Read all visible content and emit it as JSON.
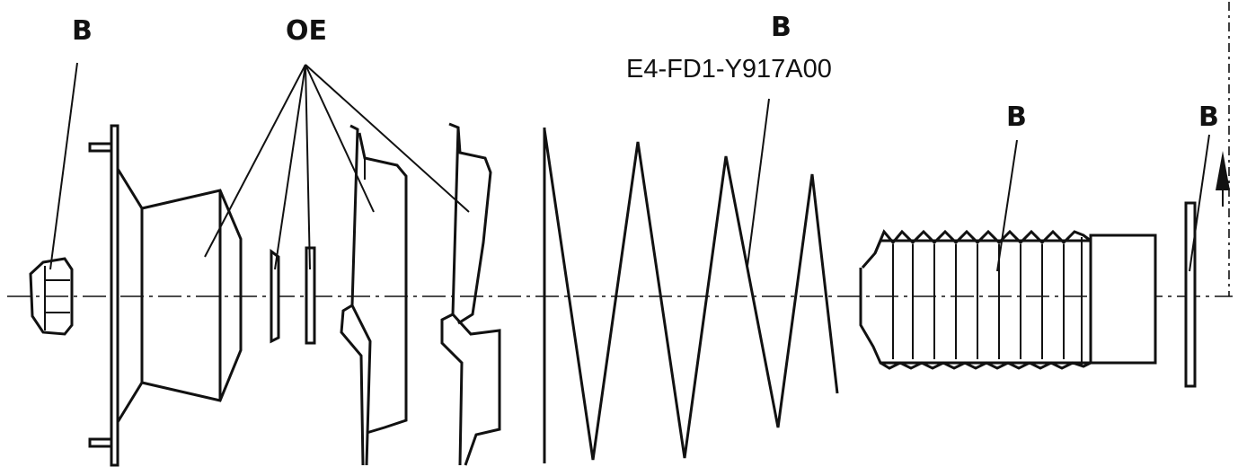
{
  "labels": {
    "nut": "B",
    "oe_group": "OE",
    "spring_label": "B",
    "part_number": "E4-FD1-Y917A00",
    "boot": "B",
    "washer": "B"
  }
}
